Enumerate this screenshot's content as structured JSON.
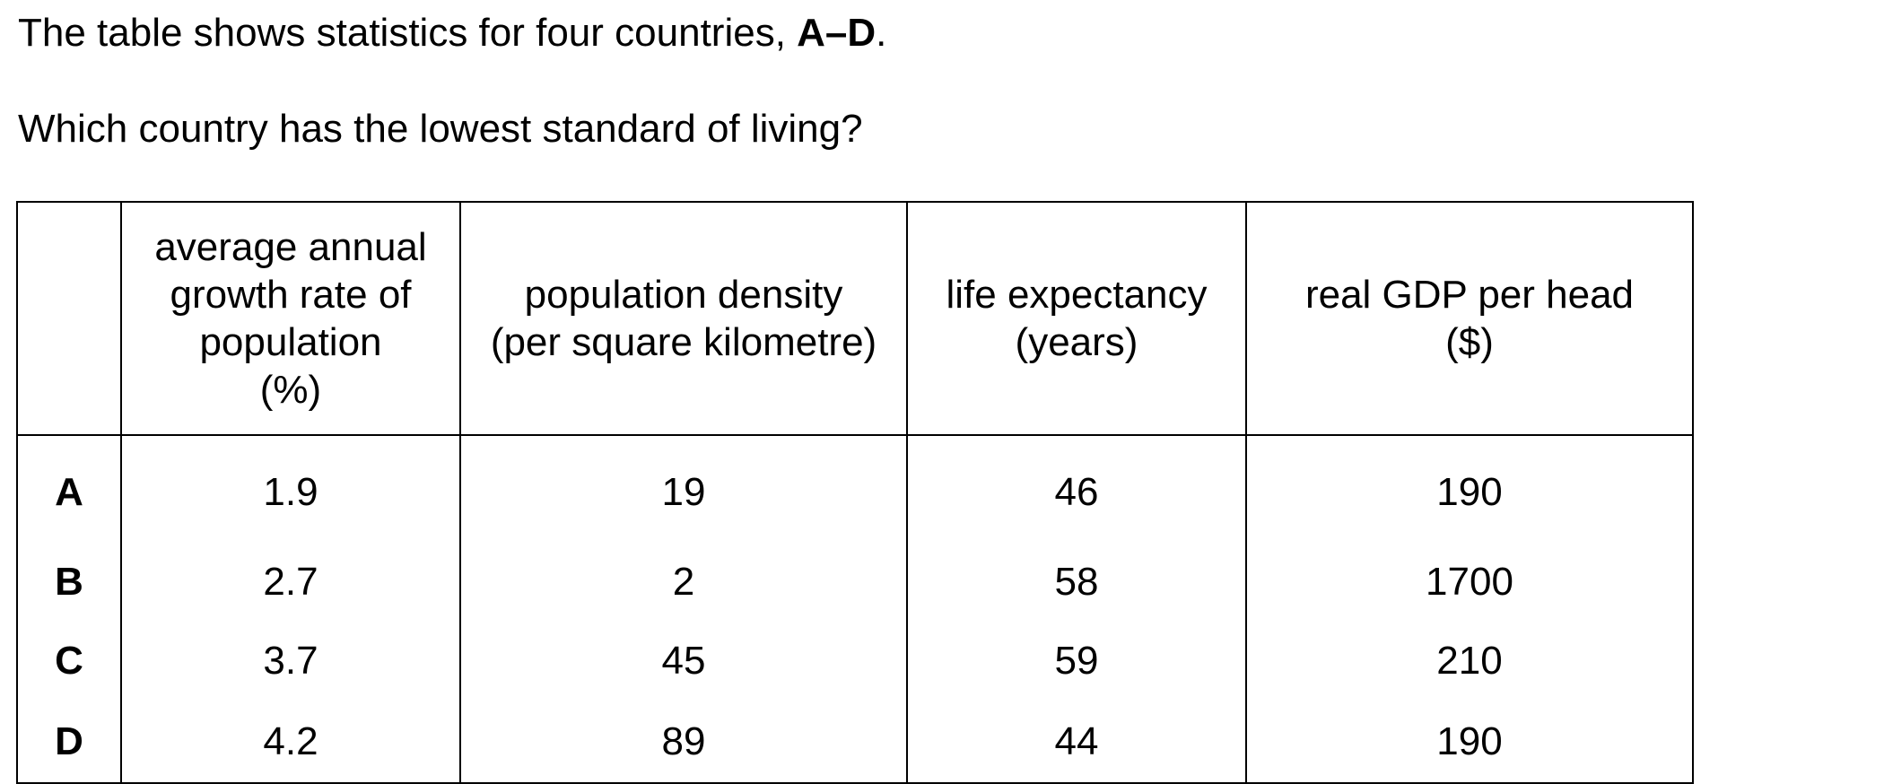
{
  "intro": {
    "text": "The table shows statistics for four countries, ",
    "bold": "A–D",
    "end": "."
  },
  "question": "Which country has the lowest standard of living?",
  "table": {
    "headers": [
      "",
      "average annual growth rate of population (%)",
      "population density (per square kilometre)",
      "life expectancy (years)",
      "real GDP per head ($)"
    ],
    "header_lines": {
      "growth": [
        "average annual",
        "growth rate of",
        "population",
        "(%)"
      ],
      "density": [
        "population density",
        "(per square kilometre)"
      ],
      "life": [
        "life expectancy",
        "(years)"
      ],
      "gdp": [
        "real GDP per head",
        "($)"
      ]
    },
    "rows": [
      {
        "label": "A",
        "growth": "1.9",
        "density": "19",
        "life": "46",
        "gdp": "190"
      },
      {
        "label": "B",
        "growth": "2.7",
        "density": "2",
        "life": "58",
        "gdp": "1700"
      },
      {
        "label": "C",
        "growth": "3.7",
        "density": "45",
        "life": "59",
        "gdp": "210"
      },
      {
        "label": "D",
        "growth": "4.2",
        "density": "89",
        "life": "44",
        "gdp": "190"
      }
    ]
  }
}
